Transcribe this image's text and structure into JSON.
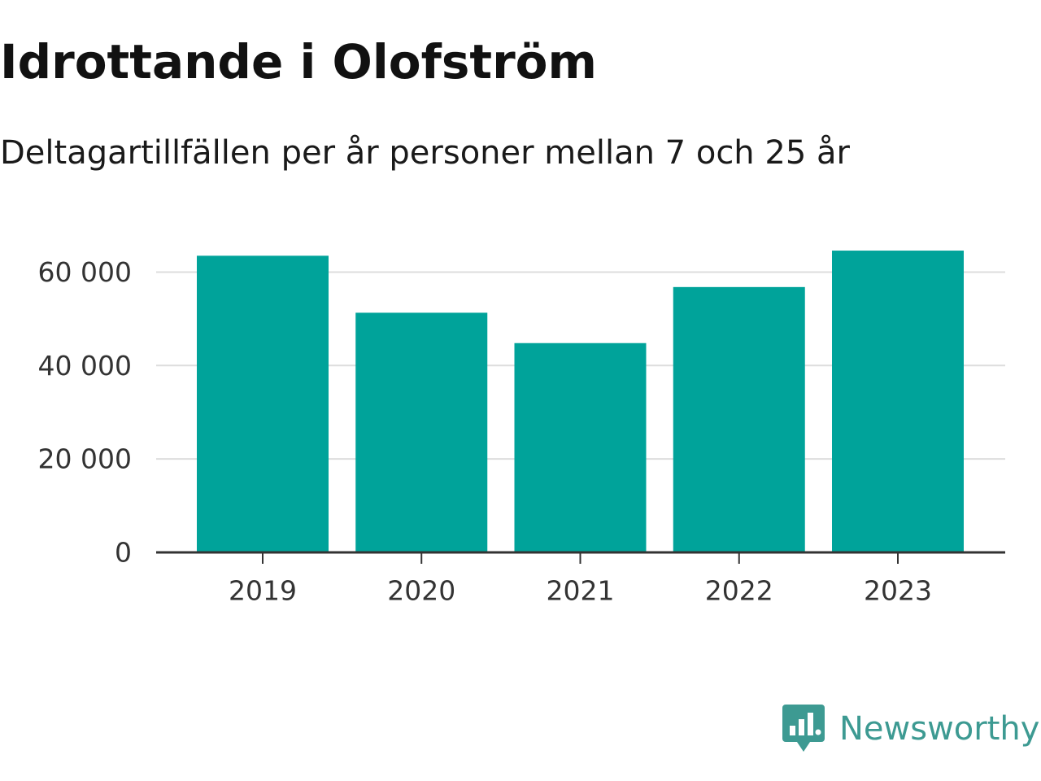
{
  "header": {
    "title": "Idrottande i Olofström",
    "subtitle": "Deltagartillfällen per år personer mellan 7 och 25 år"
  },
  "brand": {
    "name": "Newsworthy",
    "icon": "newsworthy-logo-icon",
    "color": "#3d9a92"
  },
  "colors": {
    "bar": "#00a39a",
    "grid": "#dddddd",
    "axis": "#333333"
  },
  "chart_data": {
    "type": "bar",
    "title": "Idrottande i Olofström",
    "subtitle": "Deltagartillfällen per år personer mellan 7 och 25 år",
    "xlabel": "",
    "ylabel": "",
    "categories": [
      "2019",
      "2020",
      "2021",
      "2022",
      "2023"
    ],
    "values": [
      63500,
      51300,
      44800,
      56800,
      64600
    ],
    "ylim": [
      0,
      66000
    ],
    "yticks": [
      0,
      20000,
      40000,
      60000
    ],
    "ytick_labels": [
      "0",
      "20 000",
      "40 000",
      "60 000"
    ],
    "grid": true,
    "legend": "none"
  }
}
